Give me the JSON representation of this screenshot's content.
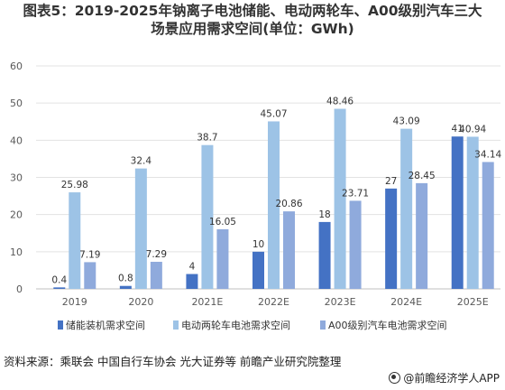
{
  "title_line1": "图表5：2019-2025年钠离子电池储能、电动两轮车、A00级别汽车三大",
  "title_line2": "场景应用需求空间(单位：GWh)",
  "source": "资料来源：乘联会 中国自行车协会 光大证券等 前瞻产业研究院整理",
  "watermark": "@前瞻经济学人APP",
  "chart_data": {
    "type": "bar",
    "categories": [
      "2019",
      "2020",
      "2021E",
      "2022E",
      "2023E",
      "2024E",
      "2025E"
    ],
    "series": [
      {
        "name": "储能装机需求空间",
        "color": "#4472C4",
        "values": [
          0.4,
          0.8,
          4,
          10,
          18,
          27,
          41
        ]
      },
      {
        "name": "电动两轮车电池需求空间",
        "color": "#9DC3E6",
        "values": [
          25.98,
          32.4,
          38.7,
          45.07,
          48.46,
          43.09,
          40.94
        ]
      },
      {
        "name": "A00级别汽车电池需求空间",
        "color": "#8FAADC",
        "values": [
          7.19,
          7.29,
          16.05,
          20.86,
          23.71,
          28.45,
          34.14
        ]
      }
    ],
    "labels": [
      [
        "0.4",
        "0.8",
        "4",
        "10",
        "18",
        "27",
        "41"
      ],
      [
        "25.98",
        "32.4",
        "38.7",
        "45.07",
        "48.46",
        "43.09",
        "40.94"
      ],
      [
        "7.19",
        "7.29",
        "16.05",
        "20.86",
        "23.71",
        "28.45",
        "34.14"
      ]
    ],
    "yticks": [
      "0",
      "10",
      "20",
      "30",
      "40",
      "50",
      "60"
    ],
    "ylim": [
      0,
      60
    ],
    "grid": true,
    "legend_position": "bottom"
  }
}
